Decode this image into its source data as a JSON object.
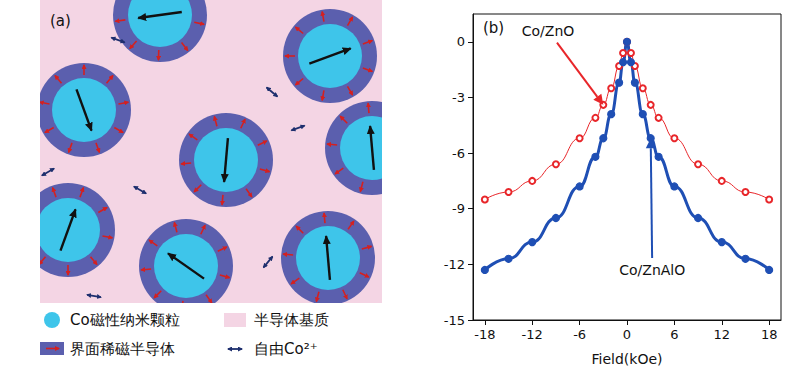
{
  "diagram": {
    "panel": "(a)",
    "legend": [
      {
        "label": "Co磁性纳米颗粒",
        "color": "#3ec5ea"
      },
      {
        "label": "半导体基质",
        "color": "#f4d5e4"
      },
      {
        "label": "界面稀磁半导体",
        "color": "#5b5fae"
      },
      {
        "label": "自由Co²⁺",
        "color": "#1e2f6e"
      }
    ]
  },
  "chart_data": {
    "type": "line",
    "panel": "(b)",
    "x_label": "Field(kOe)",
    "xlim": [
      -19.5,
      19.5
    ],
    "xticks": [
      -18,
      -12,
      -6,
      0,
      6,
      12,
      18
    ],
    "ylim": [
      -15,
      1.5
    ],
    "yticks": [
      -15,
      -12,
      -9,
      -6,
      -3,
      0
    ],
    "grid": false,
    "x": [
      -18,
      -15,
      -12,
      -9,
      -6,
      -4,
      -3,
      -2,
      -1,
      -0.5,
      0,
      0.5,
      1,
      2,
      3,
      4,
      6,
      9,
      12,
      15,
      18
    ],
    "series": [
      {
        "name": "Co/ZnO",
        "color": "#e8262a",
        "marker": "open_circle",
        "values": [
          -8.5,
          -8.1,
          -7.5,
          -6.6,
          -5.2,
          -4.1,
          -3.4,
          -2.5,
          -1.3,
          -0.6,
          0,
          -0.6,
          -1.3,
          -2.5,
          -3.4,
          -4.1,
          -5.2,
          -6.6,
          -7.5,
          -8.1,
          -8.5
        ]
      },
      {
        "name": "Co/ZnAlO",
        "color": "#1f4fb4",
        "marker": "filled_circle",
        "values": [
          -12.3,
          -11.7,
          -10.8,
          -9.5,
          -7.8,
          -6.2,
          -5.2,
          -3.9,
          -2.2,
          -1.1,
          0,
          -1.1,
          -2.2,
          -3.9,
          -5.2,
          -6.2,
          -7.8,
          -9.5,
          -10.8,
          -11.7,
          -12.3
        ]
      }
    ],
    "annotations": [
      {
        "text": "Co/ZnO",
        "x": -10,
        "y": 0.6,
        "arrow_to": [
          -3,
          -3.4
        ],
        "color": "#e8262a"
      },
      {
        "text": "Co/ZnAlO",
        "x": 3.2,
        "y": -12.3,
        "arrow_to": [
          3,
          -5.2
        ],
        "color": "#1f4fb4"
      }
    ]
  }
}
